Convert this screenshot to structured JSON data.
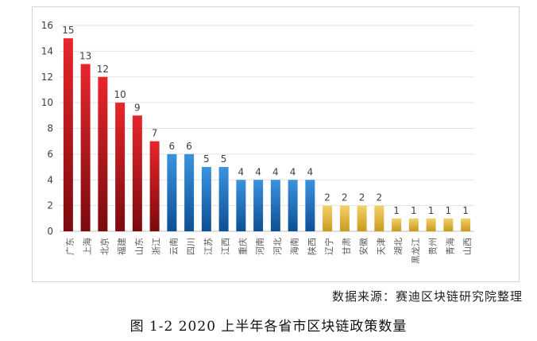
{
  "chart_data": {
    "type": "bar",
    "categories": [
      "广东",
      "上海",
      "北京",
      "福建",
      "山东",
      "浙江",
      "云南",
      "四川",
      "江苏",
      "江西",
      "重庆",
      "河南",
      "河北",
      "海南",
      "陕西",
      "辽宁",
      "甘肃",
      "安徽",
      "天津",
      "湖北",
      "黑龙江",
      "贵州",
      "青海",
      "山西"
    ],
    "values": [
      15,
      13,
      12,
      10,
      9,
      7,
      6,
      6,
      5,
      5,
      4,
      4,
      4,
      4,
      4,
      2,
      2,
      2,
      2,
      1,
      1,
      1,
      1,
      1
    ],
    "ylim": [
      0,
      16
    ],
    "yticks": [
      "0",
      "2",
      "4",
      "6",
      "8",
      "10",
      "12",
      "14",
      "16"
    ],
    "grid": true,
    "legend": "none",
    "colors": {
      "red_top": "#e8262c",
      "red_bottom": "#7a0a0d",
      "blue_top": "#3a93dd",
      "blue_bottom": "#0d4f95",
      "gold_top": "#f4d16a",
      "gold_bottom": "#c99a1c"
    }
  },
  "source_note": "数据来源：赛迪区块链研究院整理",
  "caption": "图 1-2    2020 上半年各省市区块链政策数量"
}
